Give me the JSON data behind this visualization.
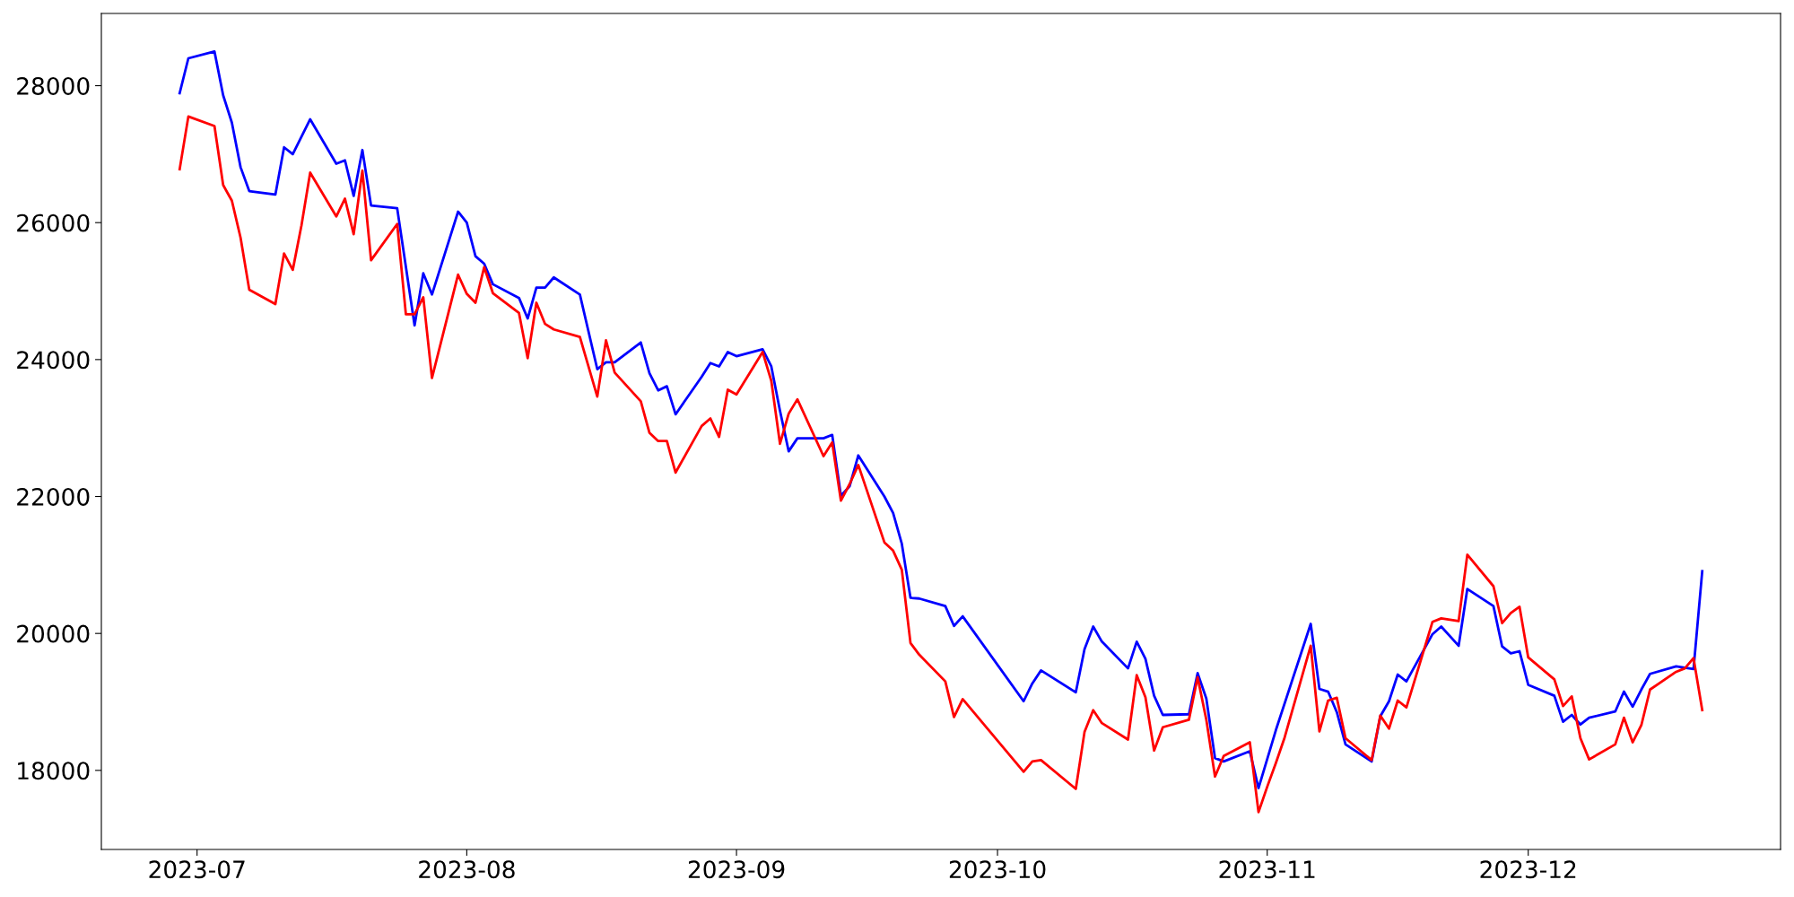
{
  "chart_data": {
    "type": "line",
    "xlim": [
      "2023-06-20",
      "2023-12-30"
    ],
    "xticks": [
      {
        "value": "2023-07-01",
        "label": "2023-07"
      },
      {
        "value": "2023-08-01",
        "label": "2023-08"
      },
      {
        "value": "2023-09-01",
        "label": "2023-09"
      },
      {
        "value": "2023-10-01",
        "label": "2023-10"
      },
      {
        "value": "2023-11-01",
        "label": "2023-11"
      },
      {
        "value": "2023-12-01",
        "label": "2023-12"
      }
    ],
    "ylim": [
      16845,
      29055
    ],
    "yticks": [
      18000,
      20000,
      22000,
      24000,
      26000,
      28000
    ],
    "grid": false,
    "marker": "none",
    "line_style": "solid",
    "series": [
      {
        "color": "#0000ff",
        "x": [
          "2023-06-29",
          "2023-06-30",
          "2023-07-03",
          "2023-07-04",
          "2023-07-05",
          "2023-07-06",
          "2023-07-07",
          "2023-07-10",
          "2023-07-11",
          "2023-07-12",
          "2023-07-14",
          "2023-07-17",
          "2023-07-18",
          "2023-07-19",
          "2023-07-20",
          "2023-07-21",
          "2023-07-24",
          "2023-07-26",
          "2023-07-27",
          "2023-07-28",
          "2023-07-31",
          "2023-08-01",
          "2023-08-02",
          "2023-08-03",
          "2023-08-04",
          "2023-08-07",
          "2023-08-08",
          "2023-08-09",
          "2023-08-10",
          "2023-08-11",
          "2023-08-14",
          "2023-08-16",
          "2023-08-17",
          "2023-08-18",
          "2023-08-21",
          "2023-08-22",
          "2023-08-23",
          "2023-08-24",
          "2023-08-25",
          "2023-08-28",
          "2023-08-29",
          "2023-08-30",
          "2023-08-31",
          "2023-09-01",
          "2023-09-04",
          "2023-09-05",
          "2023-09-06",
          "2023-09-07",
          "2023-09-08",
          "2023-09-11",
          "2023-09-12",
          "2023-09-13",
          "2023-09-14",
          "2023-09-15",
          "2023-09-18",
          "2023-09-19",
          "2023-09-20",
          "2023-09-21",
          "2023-09-22",
          "2023-09-25",
          "2023-09-26",
          "2023-09-27",
          "2023-10-04",
          "2023-10-05",
          "2023-10-06",
          "2023-10-10",
          "2023-10-11",
          "2023-10-12",
          "2023-10-13",
          "2023-10-16",
          "2023-10-17",
          "2023-10-18",
          "2023-10-19",
          "2023-10-20",
          "2023-10-23",
          "2023-10-24",
          "2023-10-25",
          "2023-10-26",
          "2023-10-27",
          "2023-10-30",
          "2023-10-31",
          "2023-11-02",
          "2023-11-06",
          "2023-11-07",
          "2023-11-08",
          "2023-11-09",
          "2023-11-10",
          "2023-11-13",
          "2023-11-14",
          "2023-11-15",
          "2023-11-16",
          "2023-11-17",
          "2023-11-20",
          "2023-11-21",
          "2023-11-23",
          "2023-11-24",
          "2023-11-27",
          "2023-11-28",
          "2023-11-29",
          "2023-11-30",
          "2023-12-01",
          "2023-12-04",
          "2023-12-05",
          "2023-12-06",
          "2023-12-07",
          "2023-12-08",
          "2023-12-11",
          "2023-12-12",
          "2023-12-13",
          "2023-12-14",
          "2023-12-15",
          "2023-12-18",
          "2023-12-19",
          "2023-12-20",
          "2023-12-21"
        ],
        "values": [
          27890,
          28400,
          28500,
          27860,
          27460,
          26810,
          26460,
          26410,
          27100,
          27000,
          27510,
          26860,
          26910,
          26390,
          27060,
          26250,
          26210,
          24500,
          25260,
          24950,
          26160,
          26000,
          25510,
          25400,
          25100,
          24900,
          24600,
          25050,
          25050,
          25200,
          24950,
          23860,
          23960,
          23960,
          24250,
          23800,
          23550,
          23610,
          23200,
          23750,
          23950,
          23900,
          24110,
          24050,
          24150,
          23900,
          23250,
          22660,
          22850,
          22850,
          22900,
          22010,
          22150,
          22600,
          22000,
          21760,
          21310,
          20520,
          20510,
          20400,
          20110,
          20250,
          19010,
          19270,
          19460,
          19140,
          19770,
          20100,
          19880,
          19490,
          19880,
          19630,
          19090,
          18810,
          18820,
          19420,
          19050,
          18180,
          18130,
          18280,
          17740,
          18590,
          20140,
          19190,
          19150,
          18850,
          18380,
          18130,
          18790,
          19010,
          19400,
          19300,
          19990,
          20100,
          19820,
          20650,
          20400,
          19810,
          19710,
          19740,
          19250,
          19090,
          18710,
          18810,
          18670,
          18770,
          18860,
          19150,
          18930,
          19180,
          19410,
          19520,
          19500,
          19480,
          20910
        ]
      },
      {
        "color": "#ff0000",
        "x": [
          "2023-06-29",
          "2023-06-30",
          "2023-07-03",
          "2023-07-04",
          "2023-07-05",
          "2023-07-06",
          "2023-07-07",
          "2023-07-10",
          "2023-07-11",
          "2023-07-12",
          "2023-07-13",
          "2023-07-14",
          "2023-07-17",
          "2023-07-18",
          "2023-07-19",
          "2023-07-20",
          "2023-07-21",
          "2023-07-24",
          "2023-07-25",
          "2023-07-26",
          "2023-07-27",
          "2023-07-28",
          "2023-07-31",
          "2023-08-01",
          "2023-08-02",
          "2023-08-03",
          "2023-08-04",
          "2023-08-07",
          "2023-08-08",
          "2023-08-09",
          "2023-08-10",
          "2023-08-11",
          "2023-08-14",
          "2023-08-16",
          "2023-08-17",
          "2023-08-18",
          "2023-08-21",
          "2023-08-22",
          "2023-08-23",
          "2023-08-24",
          "2023-08-25",
          "2023-08-28",
          "2023-08-29",
          "2023-08-30",
          "2023-08-31",
          "2023-09-01",
          "2023-09-04",
          "2023-09-05",
          "2023-09-06",
          "2023-09-07",
          "2023-09-08",
          "2023-09-11",
          "2023-09-12",
          "2023-09-13",
          "2023-09-14",
          "2023-09-15",
          "2023-09-18",
          "2023-09-19",
          "2023-09-20",
          "2023-09-21",
          "2023-09-22",
          "2023-09-25",
          "2023-09-26",
          "2023-09-27",
          "2023-10-04",
          "2023-10-05",
          "2023-10-06",
          "2023-10-10",
          "2023-10-11",
          "2023-10-12",
          "2023-10-13",
          "2023-10-16",
          "2023-10-17",
          "2023-10-18",
          "2023-10-19",
          "2023-10-20",
          "2023-10-23",
          "2023-10-24",
          "2023-10-25",
          "2023-10-26",
          "2023-10-27",
          "2023-10-30",
          "2023-10-31",
          "2023-11-01",
          "2023-11-02",
          "2023-11-03",
          "2023-11-06",
          "2023-11-07",
          "2023-11-08",
          "2023-11-09",
          "2023-11-10",
          "2023-11-13",
          "2023-11-14",
          "2023-11-15",
          "2023-11-16",
          "2023-11-17",
          "2023-11-20",
          "2023-11-21",
          "2023-11-23",
          "2023-11-24",
          "2023-11-27",
          "2023-11-28",
          "2023-11-29",
          "2023-11-30",
          "2023-12-01",
          "2023-12-04",
          "2023-12-05",
          "2023-12-06",
          "2023-12-07",
          "2023-12-08",
          "2023-12-11",
          "2023-12-12",
          "2023-12-13",
          "2023-12-14",
          "2023-12-15",
          "2023-12-18",
          "2023-12-19",
          "2023-12-20",
          "2023-12-21"
        ],
        "values": [
          26780,
          27550,
          27410,
          26550,
          26320,
          25780,
          25020,
          24810,
          25550,
          25310,
          25960,
          26730,
          26090,
          26350,
          25830,
          26760,
          25450,
          25980,
          24660,
          24660,
          24910,
          23730,
          25240,
          24960,
          24830,
          25350,
          24970,
          24680,
          24020,
          24830,
          24520,
          24440,
          24330,
          23460,
          24280,
          23810,
          23390,
          22930,
          22810,
          22810,
          22350,
          23030,
          23140,
          22870,
          23560,
          23490,
          24110,
          23690,
          22770,
          23210,
          23420,
          22590,
          22790,
          21940,
          22180,
          22460,
          21330,
          21210,
          20930,
          19860,
          19690,
          19300,
          18780,
          19040,
          17980,
          18130,
          18150,
          17730,
          18560,
          18880,
          18690,
          18450,
          19390,
          19070,
          18290,
          18630,
          18740,
          19360,
          18740,
          17910,
          18210,
          18410,
          17390,
          17760,
          18110,
          18480,
          19820,
          18570,
          19020,
          19060,
          18470,
          18150,
          18800,
          18610,
          19020,
          18920,
          20170,
          20220,
          20180,
          21150,
          20690,
          20150,
          20300,
          20390,
          19650,
          19330,
          18940,
          19080,
          18470,
          18160,
          18380,
          18770,
          18410,
          18660,
          19180,
          19440,
          19490,
          19640,
          18880
        ]
      }
    ]
  }
}
